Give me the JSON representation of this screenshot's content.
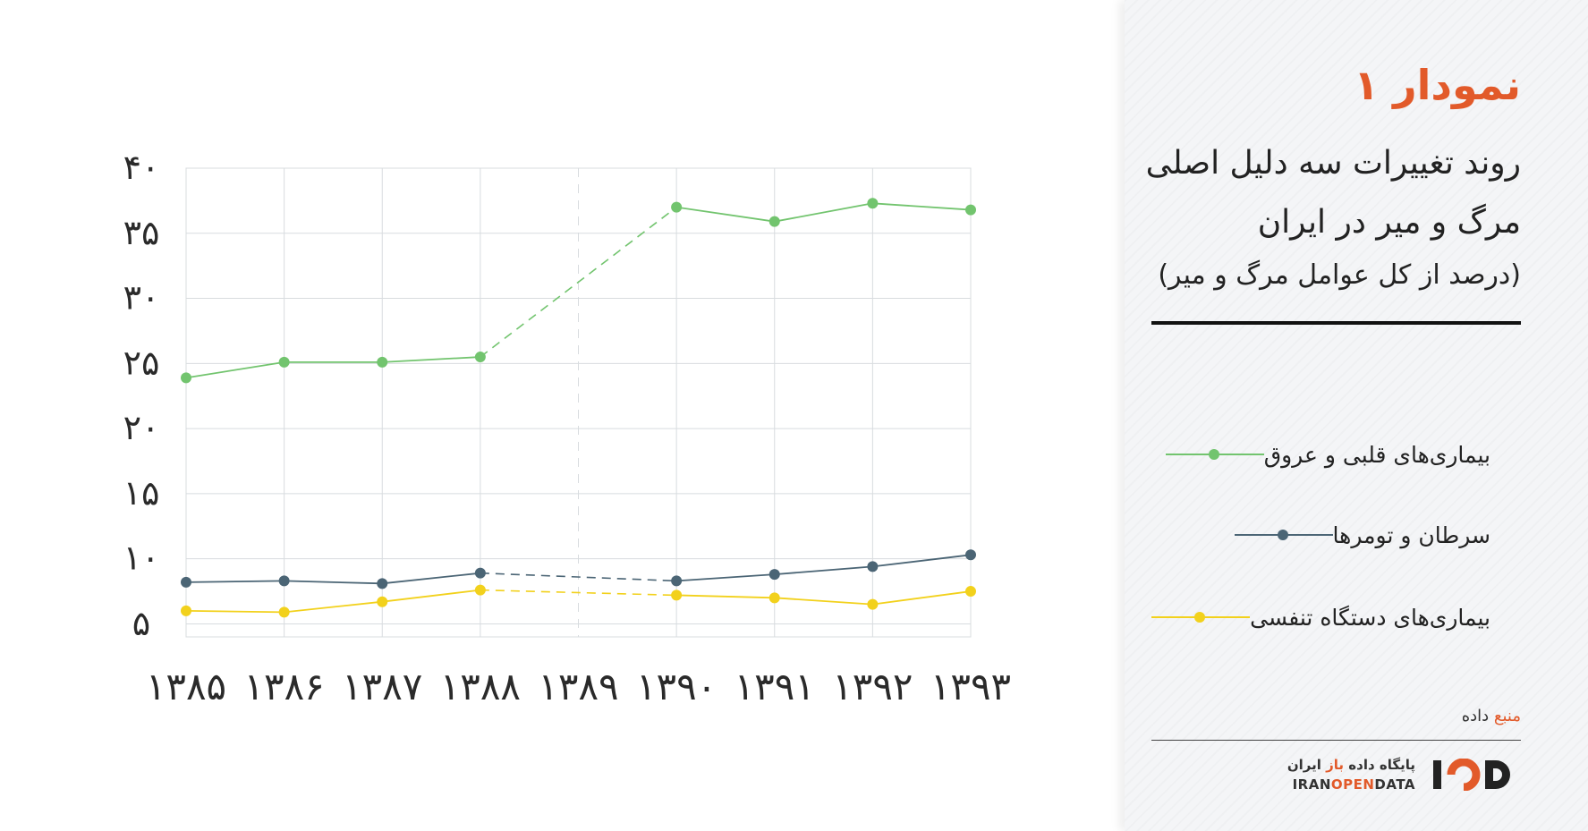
{
  "chart_data": {
    "type": "line",
    "categories": [
      "۱۳۸۵",
      "۱۳۸۶",
      "۱۳۸۷",
      "۱۳۸۸",
      "۱۳۸۹",
      "۱۳۹۰",
      "۱۳۹۱",
      "۱۳۹۲",
      "۱۳۹۳"
    ],
    "series": [
      {
        "name": "بیماری‌های قلبی و عروق",
        "color": "#72c46e",
        "values": [
          23.9,
          25.1,
          25.1,
          25.5,
          null,
          37.0,
          35.9,
          37.3,
          36.8
        ]
      },
      {
        "name": "سرطان و تومرها",
        "color": "#4b6575",
        "values": [
          8.2,
          8.3,
          8.1,
          8.9,
          null,
          8.3,
          8.8,
          9.4,
          10.3
        ]
      },
      {
        "name": "بیماری‌های دستگاه تنفسی",
        "color": "#f2d11c",
        "values": [
          6.0,
          5.9,
          6.7,
          7.6,
          null,
          7.2,
          7.0,
          6.5,
          7.5
        ]
      }
    ],
    "gap_category": "۱۳۸۹",
    "ylim": [
      4,
      40
    ],
    "yticks": [
      5,
      10,
      15,
      20,
      25,
      30,
      35,
      40
    ],
    "ytick_labels": [
      "۵",
      "۱۰",
      "۱۵",
      "۲۰",
      "۲۵",
      "۳۰",
      "۳۵",
      "۴۰"
    ],
    "grid": true
  },
  "sidebar": {
    "title": "نمودار ۱",
    "subtitle": "روند تغییرات سه دلیل اصلی مرگ و میر در ایران",
    "unit_note": "(درصد از کل عوامل مرگ و میر)",
    "legend": [
      {
        "label": "بیماری‌های قلبی و عروق",
        "color": "#72c46e"
      },
      {
        "label": "سرطان و تومرها",
        "color": "#4b6575"
      },
      {
        "label": "بیماری‌های دستگاه تنفسی",
        "color": "#f2d11c"
      }
    ],
    "source": {
      "accent": "منبع",
      "text": "داده"
    },
    "brand": {
      "fa_prefix": "پایگاه داده",
      "fa_accent": "باز",
      "fa_suffix": "ایران",
      "en_prefix": "IRAN",
      "en_accent": "OPEN",
      "en_suffix": "DATA",
      "logo_text": "IOD",
      "accent_color": "#e25a2a"
    }
  }
}
